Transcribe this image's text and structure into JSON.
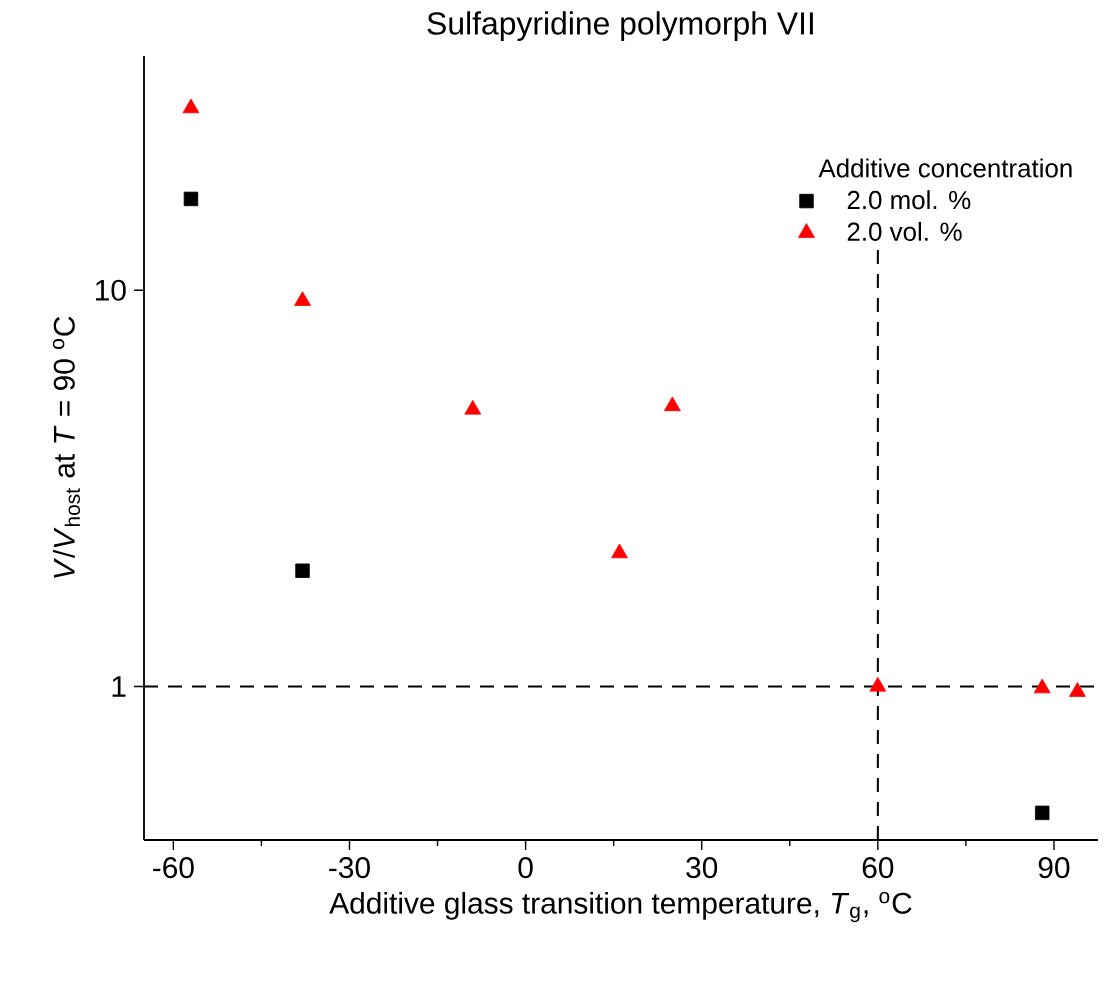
{
  "chart_data": {
    "type": "scatter",
    "title": "Sulfapyridine polymorph VII",
    "xlabel": "Additive glass transition temperature, *T*$_{g}$, $^{o}$C",
    "ylabel": "*V*/*V*$_{host}$ at *T* = 90 $^{o}$C",
    "legend_title": "Additive concentration",
    "log": "y",
    "grid": false,
    "legend": "top right",
    "xlim": [
      -65,
      97.5
    ],
    "xticks": [
      -60,
      -30,
      0,
      30,
      60,
      90
    ],
    "ylim": [
      0.41,
      39
    ],
    "yticks": [
      1,
      10
    ],
    "series": [
      {
        "name": "2.0 mol. %",
        "color": "#000000",
        "marker": "square",
        "x": [
          -57,
          -38,
          88
        ],
        "values": [
          17,
          1.96,
          0.48
        ]
      },
      {
        "name": "2.0 vol. %",
        "color": "#ff0000",
        "marker": "triangle",
        "x": [
          -57,
          -38,
          -9,
          16,
          25,
          60,
          88,
          94
        ],
        "values": [
          28.8,
          9.4,
          5.0,
          2.17,
          5.1,
          1.0,
          0.99,
          0.97
        ]
      }
    ],
    "ref_lines": [
      {
        "axis": "x",
        "value": 60,
        "line_style": "dashed",
        "color": "#000000"
      },
      {
        "axis": "y",
        "value": 1,
        "line_style": "dashed",
        "color": "#000000"
      }
    ]
  }
}
